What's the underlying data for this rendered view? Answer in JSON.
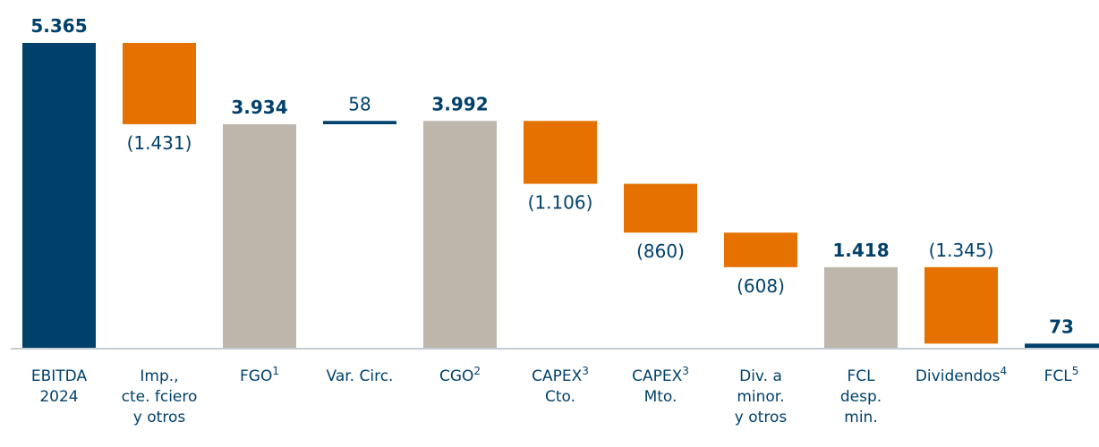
{
  "chart_data": {
    "type": "waterfall",
    "categories": [
      [
        "EBITDA",
        "2024"
      ],
      [
        "Imp.,",
        "cte. fciero",
        "y otros"
      ],
      [
        "FGO"
      ],
      [
        "Var. Circ."
      ],
      [
        "CGO"
      ],
      [
        "CAPEX",
        "Cto."
      ],
      [
        "CAPEX",
        "Mto."
      ],
      [
        "Div. a",
        "minor.",
        "y otros"
      ],
      [
        "FCL",
        "desp.",
        "min."
      ],
      [
        "Dividendos"
      ],
      [
        "FCL"
      ]
    ],
    "category_notes": [
      null,
      null,
      "1",
      null,
      "2",
      "3",
      "3",
      null,
      null,
      "4",
      "5"
    ],
    "values": [
      5365,
      -1431,
      3934,
      58,
      3992,
      -1106,
      -860,
      -608,
      1418,
      -1345,
      73
    ],
    "value_labels": [
      "5.365",
      "(1.431)",
      "3.934",
      "58",
      "3.992",
      "(1.106)",
      "(860)",
      "(608)",
      "1.418",
      "(1.345)",
      "73"
    ],
    "measure": [
      "absolute",
      "relative",
      "absolute",
      "relative",
      "absolute",
      "relative",
      "relative",
      "relative",
      "absolute",
      "relative",
      "absolute"
    ],
    "label_position": [
      "above",
      "below",
      "above",
      "above",
      "above",
      "below",
      "below",
      "below",
      "above",
      "above",
      "above"
    ],
    "colors": [
      "#00416b",
      "#e57200",
      "#bdb6ab",
      "#00416b",
      "#bdb6ab",
      "#e57200",
      "#e57200",
      "#e57200",
      "#bdb6ab",
      "#e57200",
      "#00416b"
    ]
  }
}
